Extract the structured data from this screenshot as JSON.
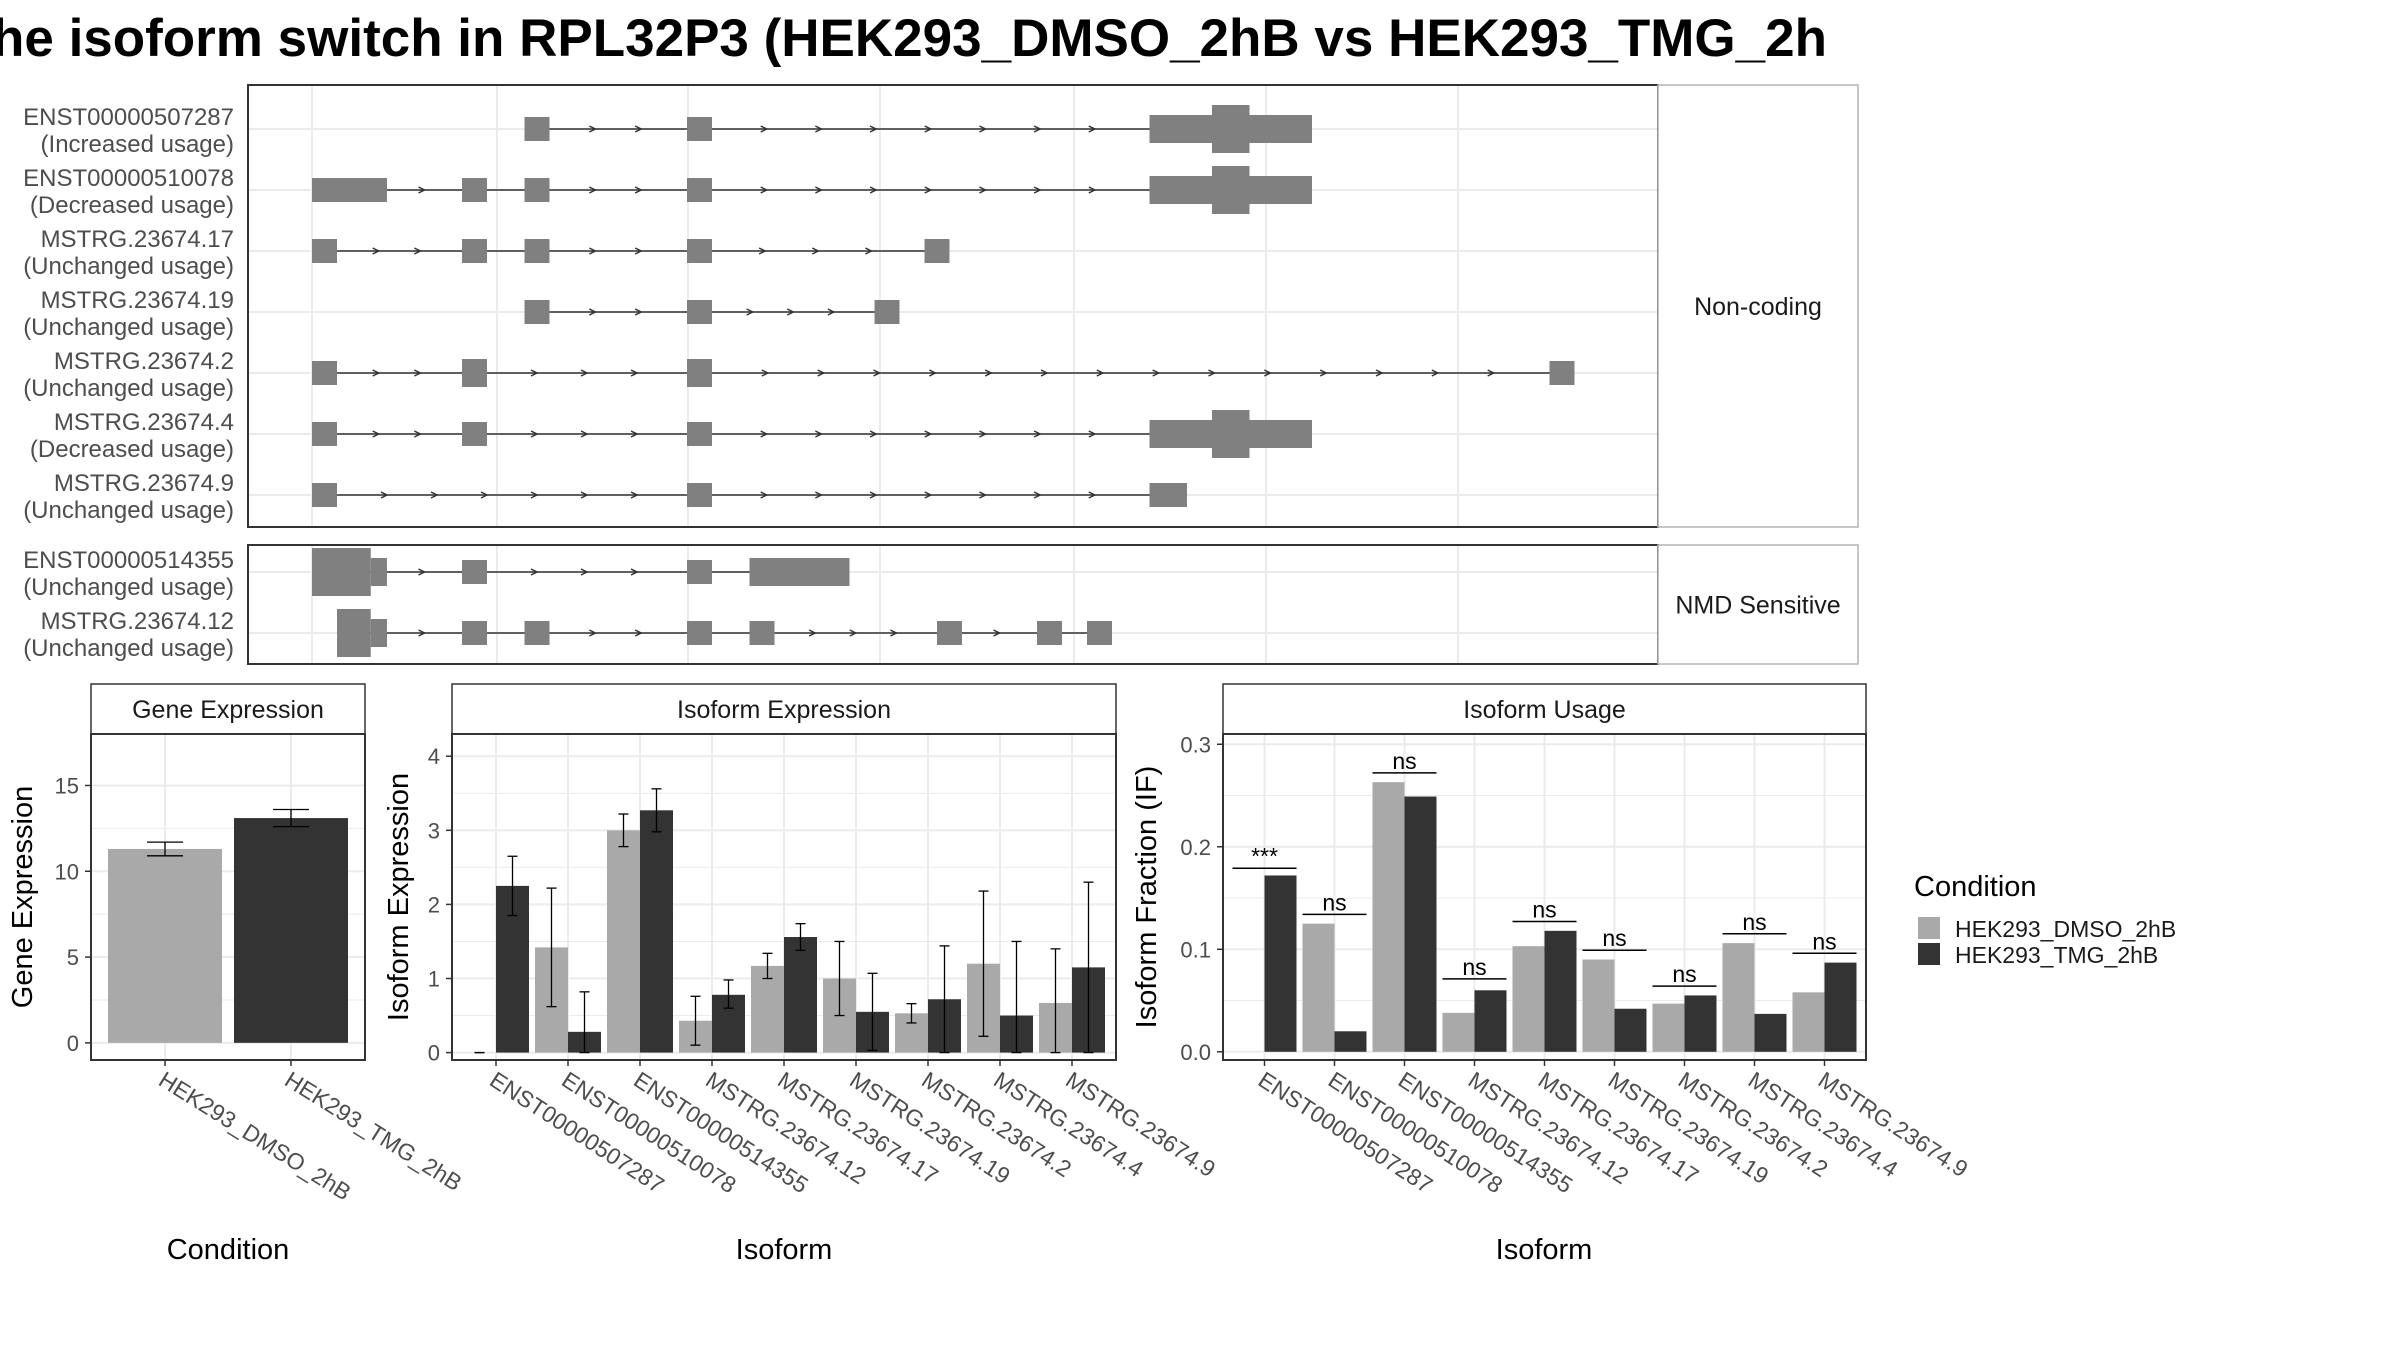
{
  "title": "he isoform switch in RPL32P3 (HEK293_DMSO_2hB vs HEK293_TMG_2h",
  "colors": {
    "exon": "#808080",
    "dmso": "#a9a9a9",
    "tmg": "#333333",
    "grid": "#ebebeb",
    "frame": "#333333",
    "strip_bg": "#ffffff"
  },
  "structure": {
    "ylabel": "",
    "facets": [
      {
        "label": "Non-coding",
        "transcripts": [
          {
            "id": "ENST00000507287",
            "usage": "(Increased usage)",
            "exons": [
              [
                0.17,
                0.19,
                "t"
              ],
              [
                0.3,
                0.32,
                "t"
              ],
              [
                0.67,
                0.72,
                "c"
              ],
              [
                0.72,
                0.75,
                "C"
              ],
              [
                0.75,
                0.8,
                "c"
              ]
            ]
          },
          {
            "id": "ENST00000510078",
            "usage": "(Decreased usage)",
            "exons": [
              [
                0.0,
                0.06,
                "t"
              ],
              [
                0.12,
                0.14,
                "t"
              ],
              [
                0.17,
                0.19,
                "t"
              ],
              [
                0.3,
                0.32,
                "t"
              ],
              [
                0.67,
                0.72,
                "c"
              ],
              [
                0.72,
                0.75,
                "C"
              ],
              [
                0.75,
                0.8,
                "c"
              ]
            ]
          },
          {
            "id": "MSTRG.23674.17",
            "usage": "(Unchanged usage)",
            "exons": [
              [
                0.0,
                0.02,
                "t"
              ],
              [
                0.12,
                0.14,
                "t"
              ],
              [
                0.17,
                0.19,
                "t"
              ],
              [
                0.3,
                0.32,
                "t"
              ],
              [
                0.49,
                0.51,
                "t"
              ]
            ]
          },
          {
            "id": "MSTRG.23674.19",
            "usage": "(Unchanged usage)",
            "exons": [
              [
                0.17,
                0.19,
                "t"
              ],
              [
                0.3,
                0.32,
                "t"
              ],
              [
                0.45,
                0.47,
                "t"
              ]
            ]
          },
          {
            "id": "MSTRG.23674.2",
            "usage": "(Unchanged usage)",
            "exons": [
              [
                0.0,
                0.02,
                "t"
              ],
              [
                0.12,
                0.14,
                "c"
              ],
              [
                0.3,
                0.32,
                "c"
              ],
              [
                0.99,
                1.01,
                "t"
              ]
            ]
          },
          {
            "id": "MSTRG.23674.4",
            "usage": "(Decreased usage)",
            "exons": [
              [
                0.0,
                0.02,
                "t"
              ],
              [
                0.12,
                0.14,
                "t"
              ],
              [
                0.3,
                0.32,
                "t"
              ],
              [
                0.67,
                0.72,
                "c"
              ],
              [
                0.72,
                0.75,
                "C"
              ],
              [
                0.75,
                0.8,
                "c"
              ]
            ]
          },
          {
            "id": "MSTRG.23674.9",
            "usage": "(Unchanged usage)",
            "exons": [
              [
                0.0,
                0.02,
                "t"
              ],
              [
                0.3,
                0.32,
                "t"
              ],
              [
                0.67,
                0.7,
                "t"
              ]
            ]
          }
        ]
      },
      {
        "label": "NMD Sensitive",
        "transcripts": [
          {
            "id": "ENST00000514355",
            "usage": "(Unchanged usage)",
            "exons": [
              [
                0.0,
                0.047,
                "C"
              ],
              [
                0.047,
                0.06,
                "c"
              ],
              [
                0.12,
                0.14,
                "t"
              ],
              [
                0.3,
                0.32,
                "t"
              ],
              [
                0.35,
                0.41,
                "c"
              ],
              [
                0.41,
                0.43,
                "c"
              ]
            ]
          },
          {
            "id": "MSTRG.23674.12",
            "usage": "(Unchanged usage)",
            "exons": [
              [
                0.02,
                0.047,
                "C"
              ],
              [
                0.047,
                0.06,
                "c"
              ],
              [
                0.12,
                0.14,
                "t"
              ],
              [
                0.17,
                0.19,
                "t"
              ],
              [
                0.3,
                0.32,
                "t"
              ],
              [
                0.35,
                0.37,
                "t"
              ],
              [
                0.5,
                0.52,
                "t"
              ],
              [
                0.58,
                0.6,
                "t"
              ],
              [
                0.62,
                0.64,
                "t"
              ]
            ]
          }
        ]
      }
    ]
  },
  "chart_data": [
    {
      "type": "bar",
      "title": "Gene Expression",
      "xlabel": "Condition",
      "ylabel": "Gene Expression",
      "ylim": [
        -1,
        18
      ],
      "yticks": [
        0,
        5,
        10,
        15
      ],
      "categories": [
        "HEK293_DMSO_2hB",
        "HEK293_TMG_2hB"
      ],
      "values": [
        11.3,
        13.1
      ],
      "errors": [
        [
          10.9,
          11.7
        ],
        [
          12.6,
          13.6
        ]
      ],
      "colors": [
        "dmso",
        "tmg"
      ]
    },
    {
      "type": "bar",
      "title": "Isoform Expression",
      "xlabel": "Isoform",
      "ylabel": "Isoform Expression",
      "ylim": [
        -0.1,
        4.3
      ],
      "yticks": [
        0,
        1,
        2,
        3,
        4
      ],
      "categories": [
        "ENST00000507287",
        "ENST00000510078",
        "ENST00000514355",
        "MSTRG.23674.12",
        "MSTRG.23674.17",
        "MSTRG.23674.19",
        "MSTRG.23674.2",
        "MSTRG.23674.4",
        "MSTRG.23674.9"
      ],
      "series": [
        {
          "name": "HEK293_DMSO_2hB",
          "values": [
            0.0,
            1.42,
            3.0,
            0.43,
            1.17,
            1.0,
            0.53,
            1.2,
            0.67
          ],
          "errors": [
            [
              0.0,
              0.0
            ],
            [
              0.62,
              2.22
            ],
            [
              2.78,
              3.22
            ],
            [
              0.1,
              0.76
            ],
            [
              1.0,
              1.34
            ],
            [
              0.5,
              1.5
            ],
            [
              0.4,
              0.66
            ],
            [
              0.22,
              2.18
            ],
            [
              0.0,
              1.4
            ]
          ]
        },
        {
          "name": "HEK293_TMG_2hB",
          "values": [
            2.25,
            0.28,
            3.27,
            0.78,
            1.56,
            0.55,
            0.72,
            0.5,
            1.15
          ],
          "errors": [
            [
              1.85,
              2.65
            ],
            [
              0.0,
              0.82
            ],
            [
              2.98,
              3.56
            ],
            [
              0.6,
              0.98
            ],
            [
              1.38,
              1.74
            ],
            [
              0.03,
              1.07
            ],
            [
              0.0,
              1.44
            ],
            [
              0.0,
              1.5
            ],
            [
              0.0,
              2.3
            ]
          ]
        }
      ]
    },
    {
      "type": "bar",
      "title": "Isoform Usage",
      "xlabel": "Isoform",
      "ylabel": "Isoform Fraction (IF)",
      "ylim": [
        -0.008,
        0.31
      ],
      "yticks": [
        0.0,
        0.1,
        0.2,
        0.3
      ],
      "yticklabels": [
        "0.0",
        "0.1",
        "0.2",
        "0.3"
      ],
      "categories": [
        "ENST00000507287",
        "ENST00000510078",
        "ENST00000514355",
        "MSTRG.23674.12",
        "MSTRG.23674.17",
        "MSTRG.23674.19",
        "MSTRG.23674.2",
        "MSTRG.23674.4",
        "MSTRG.23674.9"
      ],
      "series": [
        {
          "name": "HEK293_DMSO_2hB",
          "values": [
            0.0,
            0.125,
            0.263,
            0.038,
            0.103,
            0.09,
            0.047,
            0.106,
            0.058
          ]
        },
        {
          "name": "HEK293_TMG_2hB",
          "values": [
            0.172,
            0.02,
            0.249,
            0.06,
            0.118,
            0.042,
            0.055,
            0.037,
            0.087
          ]
        }
      ],
      "significance": [
        "***",
        "ns",
        "ns",
        "ns",
        "ns",
        "ns",
        "ns",
        "ns",
        "ns"
      ],
      "sig_y": [
        0.183,
        0.138,
        0.276,
        0.075,
        0.131,
        0.103,
        0.068,
        0.119,
        0.1
      ]
    }
  ],
  "legend": {
    "title": "Condition",
    "items": [
      {
        "label": "HEK293_DMSO_2hB",
        "color": "dmso"
      },
      {
        "label": "HEK293_TMG_2hB",
        "color": "tmg"
      }
    ]
  }
}
